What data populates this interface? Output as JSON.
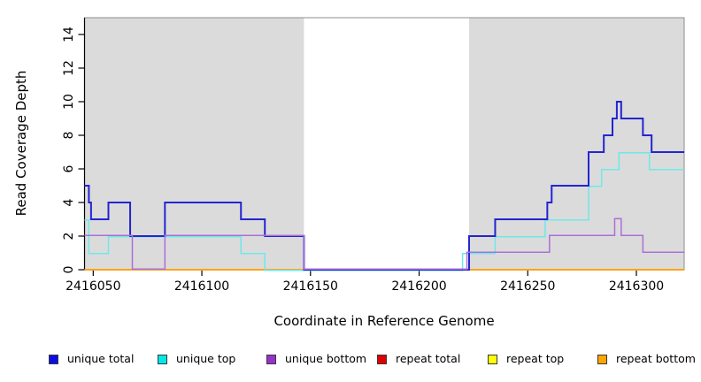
{
  "chart_data": {
    "type": "line",
    "step": true,
    "title": "",
    "xlabel": "Coordinate in Reference Genome",
    "ylabel": "Read Coverage Depth",
    "xlim": [
      2416046,
      2416322
    ],
    "ylim": [
      0,
      15
    ],
    "xticks": [
      2416050,
      2416100,
      2416150,
      2416200,
      2416250,
      2416300
    ],
    "yticks": [
      0,
      2,
      4,
      6,
      8,
      10,
      12,
      14
    ],
    "grid": false,
    "legend_position": "bottom",
    "plot_background": "#ffffff",
    "shaded_region_color": "#DBDBDB",
    "box_border_color": "#8C8C8C",
    "axis_color": "#000000",
    "shaded_regions": [
      {
        "from": 2416046,
        "to": 2416147
      },
      {
        "from": 2416223,
        "to": 2416322
      }
    ],
    "draw_order": [
      "repeat total",
      "repeat top",
      "repeat bottom",
      "unique top",
      "unique total",
      "unique bottom"
    ],
    "series": [
      {
        "name": "unique total",
        "color": "#2424D2",
        "swatch": "#0D0DE3",
        "points": [
          [
            2416046,
            5
          ],
          [
            2416048,
            4
          ],
          [
            2416049,
            3
          ],
          [
            2416057,
            4
          ],
          [
            2416067,
            2
          ],
          [
            2416083,
            4
          ],
          [
            2416118,
            3
          ],
          [
            2416129,
            2
          ],
          [
            2416147,
            0
          ],
          [
            2416223,
            2
          ],
          [
            2416235,
            3
          ],
          [
            2416259,
            4
          ],
          [
            2416261,
            5
          ],
          [
            2416278,
            7
          ],
          [
            2416285,
            8
          ],
          [
            2416289,
            9
          ],
          [
            2416291,
            10
          ],
          [
            2416293,
            9
          ],
          [
            2416303,
            8
          ],
          [
            2416307,
            7
          ]
        ]
      },
      {
        "name": "unique top",
        "color": "#6FE8E8",
        "swatch": "#00E8E8",
        "points": [
          [
            2416046,
            3
          ],
          [
            2416048,
            1
          ],
          [
            2416057,
            2
          ],
          [
            2416118,
            1
          ],
          [
            2416129,
            0
          ],
          [
            2416220,
            1
          ],
          [
            2416235,
            2
          ],
          [
            2416258,
            3
          ],
          [
            2416278,
            5
          ],
          [
            2416284,
            6
          ],
          [
            2416292,
            7
          ],
          [
            2416306,
            6
          ]
        ]
      },
      {
        "name": "unique bottom",
        "color": "#AB6FD9",
        "swatch": "#9932CC",
        "points": [
          [
            2416046,
            2
          ],
          [
            2416068,
            0
          ],
          [
            2416083,
            2
          ],
          [
            2416147,
            0
          ],
          [
            2416222,
            1
          ],
          [
            2416260,
            2
          ],
          [
            2416290,
            3
          ],
          [
            2416293,
            2
          ],
          [
            2416303,
            1
          ]
        ]
      },
      {
        "name": "repeat total",
        "color": "#DD0000",
        "swatch": "#DD0000",
        "points": [
          [
            2416046,
            0
          ]
        ]
      },
      {
        "name": "repeat top",
        "color": "#F5F500",
        "swatch": "#FFFF00",
        "points": [
          [
            2416046,
            0
          ]
        ]
      },
      {
        "name": "repeat bottom",
        "color": "#FFA319",
        "swatch": "#FFA500",
        "points": [
          [
            2416046,
            0
          ]
        ]
      }
    ]
  }
}
